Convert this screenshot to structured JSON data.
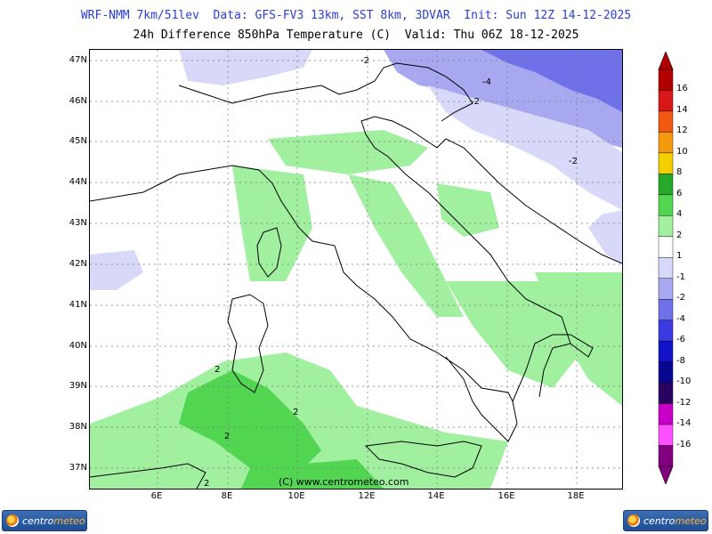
{
  "header": {
    "line1": "WRF-NMM 7km/51lev  Data: GFS-FV3 13km, SST 8km, 3DVAR  Init: Sun 12Z 14-12-2025",
    "line2": "24h Difference 850hPa Temperature (C)  Valid: Thu 06Z 18-12-2025"
  },
  "map": {
    "lat_labels": [
      "47N",
      "46N",
      "45N",
      "44N",
      "43N",
      "42N",
      "41N",
      "40N",
      "39N",
      "38N",
      "37N"
    ],
    "lon_labels": [
      "6E",
      "8E",
      "10E",
      "12E",
      "14E",
      "16E",
      "18E"
    ],
    "copyright": "(C) www.centrometeo.com",
    "contour_labels": [
      "-2",
      "-4",
      "-2",
      "-2",
      "2",
      "2",
      "2",
      "2"
    ]
  },
  "colorbar": {
    "labels": [
      "16",
      "14",
      "12",
      "10",
      "8",
      "6",
      "4",
      "2",
      "1",
      "-1",
      "-2",
      "-4",
      "-6",
      "-8",
      "-10",
      "-12",
      "-14",
      "-16"
    ],
    "colors": [
      "#b00000",
      "#d81818",
      "#f05a10",
      "#f59a10",
      "#f5d000",
      "#28a828",
      "#52d652",
      "#a0f0a0",
      "#ffffff",
      "#d8d8f8",
      "#a8a8f0",
      "#7070e8",
      "#3a3ae0",
      "#1212c8",
      "#060690",
      "#2a0060",
      "#c800c8",
      "#ff50ff",
      "#800080"
    ]
  },
  "branding": {
    "logo_left": {
      "part1": "centro",
      "part2": "meteo"
    },
    "logo_right": {
      "part1": "centro",
      "part2": "meteo"
    },
    "brand_color": "#1e4d93",
    "accent_color": "#ffb02e"
  }
}
